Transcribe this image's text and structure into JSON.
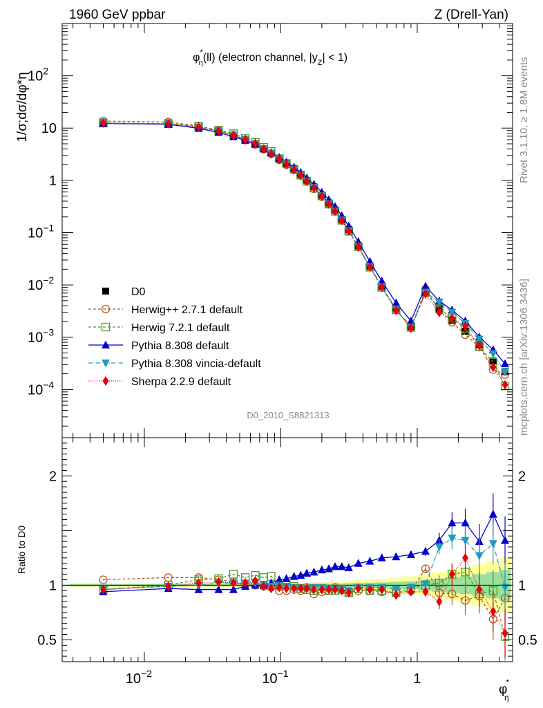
{
  "header": {
    "left": "1960 GeV ppbar",
    "right": "Z (Drell-Yan)"
  },
  "side": {
    "rivet": "Rivet 3.1.10, ≥ 1.8M events",
    "mcplots": "mcplots.cern.ch [arXiv:1306.3436]"
  },
  "chart_data": {
    "type": "line",
    "title": "φ*η(ll) (electron channel, |yZ| < 1)",
    "title_parts": {
      "phi": "φ",
      "star": "*",
      "eta": "η",
      "rest1": "(ll) (electron channel, |y",
      "sub_z": "Z",
      "rest2": "| < 1)"
    },
    "ylabel_main": "1/σ;dσ/dφ*η",
    "ylabel_ratio": "Ratio to D0",
    "xlabel": "φ*η",
    "xlabel_parts": {
      "phi": "φ",
      "star": "*",
      "eta": "η"
    },
    "analysis_id": "D0_2010_S8821313",
    "x_scale": "log",
    "y_scale": "log",
    "xlim": [
      0.0025,
      5.0
    ],
    "ylim_main": [
      1.2e-05,
      1000
    ],
    "ylim_ratio": [
      0.3,
      2.35
    ],
    "x_ticks": [
      {
        "v": 0.01,
        "base": "10",
        "exp": "−2"
      },
      {
        "v": 0.1,
        "base": "10",
        "exp": "−1"
      },
      {
        "v": 1,
        "base": "1",
        "exp": ""
      }
    ],
    "y_ticks": [
      {
        "v": 100,
        "base": "10",
        "exp": "2"
      },
      {
        "v": 10,
        "base": "10",
        "exp": ""
      },
      {
        "v": 1,
        "base": "1",
        "exp": ""
      },
      {
        "v": 0.1,
        "base": "10",
        "exp": "−1"
      },
      {
        "v": 0.01,
        "base": "10",
        "exp": "−2"
      },
      {
        "v": 0.001,
        "base": "10",
        "exp": "−3"
      },
      {
        "v": 0.0001,
        "base": "10",
        "exp": "−4"
      }
    ],
    "ratio_ticks": [
      {
        "v": 0.5,
        "label": "0.5"
      },
      {
        "v": 1,
        "label": "1"
      },
      {
        "v": 2,
        "label": "2"
      }
    ],
    "x": [
      0.005,
      0.015,
      0.025,
      0.035,
      0.045,
      0.055,
      0.065,
      0.075,
      0.085,
      0.0975,
      0.11,
      0.125,
      0.14,
      0.155,
      0.175,
      0.2,
      0.225,
      0.25,
      0.28,
      0.315,
      0.37,
      0.45,
      0.55,
      0.7,
      0.9,
      1.15,
      1.45,
      1.8,
      2.25,
      2.85,
      3.6,
      4.4
    ],
    "data": {
      "name": "D0",
      "color": "#000000",
      "values": [
        13.0,
        12.2,
        10.3,
        8.6,
        7.1,
        5.9,
        4.9,
        4.0,
        3.3,
        2.6,
        2.1,
        1.65,
        1.3,
        1.0,
        0.75,
        0.52,
        0.37,
        0.27,
        0.18,
        0.115,
        0.056,
        0.023,
        0.0095,
        0.0036,
        0.0016,
        0.0072,
        0.0035,
        0.0021,
        0.0013,
        0.00072,
        0.00035,
        0.00022
      ],
      "unc_inner": [
        0.01,
        0.01,
        0.01,
        0.01,
        0.01,
        0.01,
        0.01,
        0.01,
        0.01,
        0.01,
        0.01,
        0.01,
        0.01,
        0.01,
        0.012,
        0.013,
        0.014,
        0.015,
        0.016,
        0.018,
        0.02,
        0.022,
        0.025,
        0.03,
        0.035,
        0.05,
        0.06,
        0.07,
        0.08,
        0.1,
        0.12,
        0.14
      ],
      "unc_outer": [
        0.02,
        0.02,
        0.02,
        0.02,
        0.02,
        0.02,
        0.02,
        0.02,
        0.02,
        0.02,
        0.02,
        0.02,
        0.02,
        0.02,
        0.025,
        0.027,
        0.03,
        0.032,
        0.035,
        0.04,
        0.045,
        0.05,
        0.06,
        0.07,
        0.08,
        0.1,
        0.12,
        0.14,
        0.16,
        0.19,
        0.22,
        0.25
      ]
    },
    "series": [
      {
        "name": "Herwig++ 2.7.1 default",
        "color": "#b35a1f",
        "marker": "circle-open",
        "dash": "4,3",
        "ratio": [
          1.05,
          1.07,
          1.07,
          1.05,
          1.03,
          1.0,
          1.0,
          0.99,
          0.98,
          0.95,
          0.95,
          0.96,
          0.95,
          0.98,
          0.92,
          0.94,
          0.95,
          0.98,
          0.96,
          0.93,
          0.95,
          0.95,
          0.94,
          0.93,
          0.95,
          1.15,
          0.93,
          0.92,
          0.86,
          0.9,
          0.69,
          0.88
        ]
      },
      {
        "name": "Herwig 7.2.1 default",
        "color": "#4c9a2a",
        "marker": "square-open",
        "dash": "4,3",
        "ratio": [
          0.96,
          1.0,
          1.05,
          1.06,
          1.1,
          1.07,
          1.09,
          1.07,
          1.08,
          1.0,
          1.0,
          0.99,
          0.97,
          0.96,
          0.95,
          0.97,
          0.95,
          0.95,
          0.96,
          0.93,
          0.97,
          0.95,
          0.95,
          0.93,
          0.97,
          1.0,
          1.02,
          1.1,
          1.12,
          0.92,
          0.95,
          0.53
        ]
      },
      {
        "name": "Pythia 8.308 default",
        "color": "#0000cc",
        "marker": "triangle-up",
        "dash": "",
        "ratio": [
          0.94,
          0.97,
          0.96,
          0.96,
          0.96,
          0.99,
          1.0,
          1.0,
          1.02,
          1.05,
          1.06,
          1.08,
          1.09,
          1.11,
          1.12,
          1.14,
          1.15,
          1.17,
          1.17,
          1.16,
          1.2,
          1.22,
          1.25,
          1.26,
          1.28,
          1.31,
          1.41,
          1.57,
          1.57,
          1.4,
          1.65,
          1.41
        ]
      },
      {
        "name": "Pythia 8.308 vincia-default",
        "color": "#1f9bbd",
        "marker": "triangle-down",
        "dash": "6,2,1,2",
        "ratio": [
          0.96,
          0.99,
          1.0,
          1.02,
          1.02,
          1.02,
          1.02,
          1.0,
          0.99,
          1.0,
          0.99,
          0.98,
          0.97,
          0.97,
          0.98,
          0.98,
          0.97,
          0.96,
          0.97,
          0.95,
          0.98,
          0.98,
          0.98,
          0.96,
          0.98,
          1.01,
          1.35,
          1.43,
          1.41,
          1.27,
          1.38,
          0.98
        ]
      },
      {
        "name": "Sherpa 2.2.9 default",
        "color": "#e8000b",
        "marker": "diamond",
        "dash": "1,2",
        "ratio": [
          0.96,
          0.99,
          1.02,
          1.03,
          1.02,
          1.02,
          1.04,
          0.99,
          0.97,
          0.98,
          0.97,
          0.97,
          0.97,
          0.97,
          0.96,
          0.96,
          0.96,
          0.96,
          0.95,
          0.93,
          0.97,
          0.96,
          0.96,
          0.91,
          0.94,
          0.94,
          0.85,
          1.1,
          1.25,
          0.96,
          0.76,
          0.56
        ]
      }
    ],
    "legend_position": "middle-left",
    "band_colors": {
      "outer": "#ffff99",
      "inner": "#9be09b"
    }
  }
}
